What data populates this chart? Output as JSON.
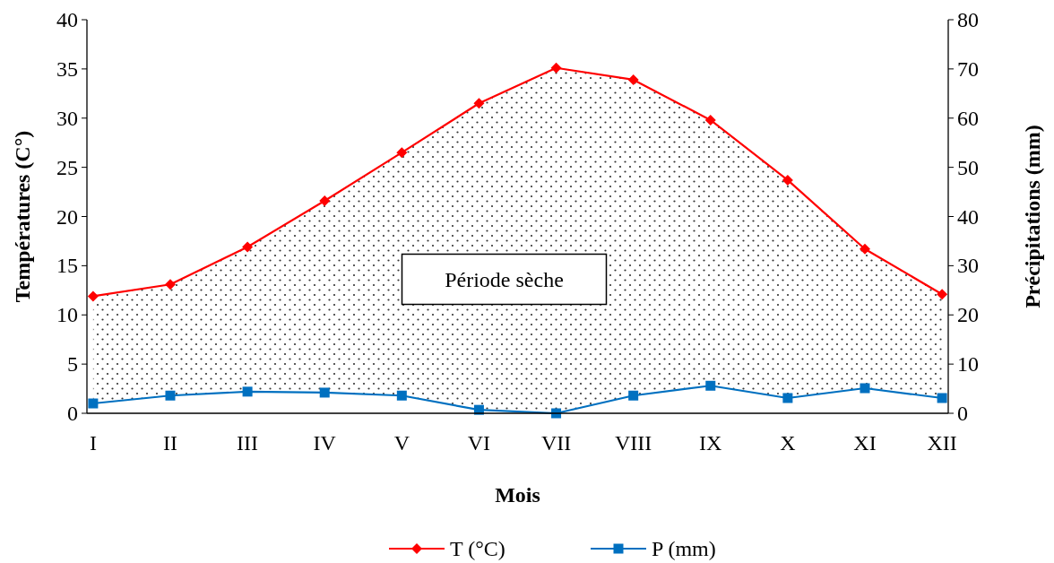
{
  "chart_data": {
    "type": "line",
    "xlabel": "Mois",
    "ylabel": "Températures (C°)",
    "y2label": "Précipitations (mm)",
    "categories": [
      "I",
      "II",
      "III",
      "IV",
      "V",
      "VI",
      "VII",
      "VIII",
      "IX",
      "X",
      "XI",
      "XII"
    ],
    "series": [
      {
        "name": "T (°C)",
        "color": "#ff0000",
        "marker": "diamond",
        "values": [
          11.9,
          13.1,
          16.9,
          21.6,
          26.5,
          31.5,
          35.1,
          33.9,
          29.8,
          23.7,
          16.7,
          12.1
        ],
        "upper": [
          11.9,
          13.1,
          16.9,
          21.6,
          26.5,
          31.5,
          35.1,
          33.9,
          29.8,
          23.7,
          16.7,
          12.1
        ],
        "lower": [
          1.0,
          1.8,
          2.2,
          2.1,
          1.8,
          0.35,
          0,
          1.8,
          2.8,
          1.55,
          2.55,
          1.55
        ]
      },
      {
        "name": "P (mm)",
        "color": "#0070c0",
        "marker": "square",
        "axis": "y2",
        "values": [
          2.0,
          3.6,
          4.4,
          4.2,
          3.6,
          0.7,
          0,
          3.6,
          5.6,
          3.1,
          5.1,
          3.1
        ]
      }
    ],
    "ylim": [
      0,
      40
    ],
    "yticks": [
      0,
      5,
      10,
      15,
      20,
      25,
      30,
      35,
      40
    ],
    "y2lim": [
      0,
      80
    ],
    "y2ticks": [
      0,
      10,
      20,
      30,
      40,
      50,
      60,
      70,
      80
    ],
    "annotations": [
      "Période sèche"
    ],
    "grid": false,
    "legend": "bottom"
  }
}
